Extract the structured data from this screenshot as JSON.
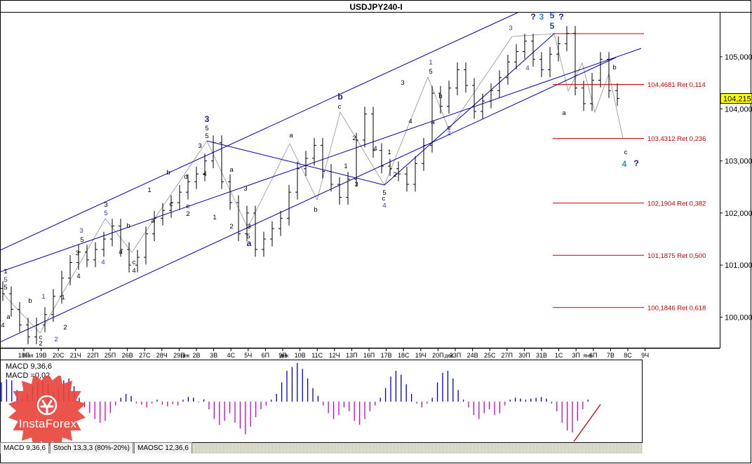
{
  "window": {
    "title": "USDJPY240-I"
  },
  "colors": {
    "price_bars": "#000000",
    "channel": "#0000aa",
    "fib_lines": "#cc0000",
    "zigzag": "#909090",
    "macd_pos": "#0000cc",
    "macd_neg": "#cc00cc",
    "signal": "#cc0000",
    "wave_black": "#000000",
    "wave_blue": "#1a3fbf",
    "wave_cyan": "#2a8ad4",
    "wave_navy": "#1a1a80",
    "logo": "#e8453c"
  },
  "chart_data": [
    {
      "type": "candlestick",
      "title": "USDJPY240-I",
      "ylim": [
        99.4,
        106.0
      ],
      "yticks": [
        "105,000",
        "104,000",
        "103,000",
        "102,000",
        "101,000",
        "100,000"
      ],
      "current_price": "104,215",
      "grid": false,
      "x_ticks": [
        "18П",
        "19В",
        "20С",
        "21Ч",
        "22П",
        "25П",
        "26В",
        "27С",
        "28Ч",
        "29П",
        "2В",
        "3В",
        "4С",
        "5Ч",
        "6П",
        "9П",
        "10В",
        "11С",
        "12Ч",
        "13П",
        "16П",
        "17В",
        "18С",
        "19Ч",
        "20П",
        "23П",
        "24В",
        "25С",
        "27П",
        "30П",
        "31В",
        "1С",
        "3П",
        "6П",
        "7В",
        "8С",
        "9Ч"
      ],
      "x_tick_inserts": [
        "Ноя",
        "дек",
        "дек",
        "дек",
        "янв"
      ],
      "close": [
        100.45,
        100.15,
        99.85,
        99.62,
        99.85,
        100.05,
        100.4,
        100.75,
        101.05,
        101.25,
        101.1,
        101.3,
        101.5,
        101.75,
        101.3,
        101.0,
        101.15,
        101.6,
        101.9,
        102.05,
        102.2,
        102.4,
        102.6,
        102.75,
        103.0,
        103.35,
        102.6,
        102.2,
        101.6,
        102.0,
        101.3,
        101.5,
        101.7,
        101.9,
        102.4,
        102.85,
        103.05,
        103.3,
        102.8,
        102.55,
        102.3,
        102.65,
        103.4,
        103.9,
        103.2,
        102.9,
        102.85,
        102.75,
        102.55,
        102.95,
        103.3,
        104.3,
        104.05,
        104.4,
        104.75,
        104.45,
        103.95,
        104.15,
        104.35,
        104.6,
        104.9,
        105.1,
        105.3,
        104.95,
        104.75,
        105.05,
        105.25,
        105.45,
        104.4,
        104.1,
        104.55,
        104.95,
        104.35,
        104.2
      ],
      "fib_levels": [
        {
          "price": 104.4681,
          "label": "104,4681 Ret 0,114"
        },
        {
          "price": 103.4312,
          "label": "103,4312 Ret 0,236"
        },
        {
          "price": 102.1904,
          "label": "102,1904 Ret 0,382"
        },
        {
          "price": 101.1875,
          "label": "101,1875 Ret 0,500"
        },
        {
          "price": 100.1846,
          "label": "100,1846 Ret 0,618"
        }
      ],
      "wave_labels": [
        {
          "text": "1",
          "color": "black"
        },
        {
          "text": "5",
          "color": "blue"
        },
        {
          "text": "5",
          "color": "black"
        },
        {
          "text": "4",
          "color": "black"
        },
        {
          "text": "a",
          "color": "black"
        },
        {
          "text": "b",
          "color": "black"
        },
        {
          "text": "1",
          "color": "blue"
        },
        {
          "text": "c",
          "color": "black"
        },
        {
          "text": "2",
          "color": "black"
        },
        {
          "text": "2",
          "color": "blue"
        },
        {
          "text": "1",
          "color": "black"
        },
        {
          "text": "2",
          "color": "black"
        },
        {
          "text": "4",
          "color": "black"
        },
        {
          "text": "3",
          "color": "black"
        },
        {
          "text": "3",
          "color": "blue"
        },
        {
          "text": "5",
          "color": "black"
        },
        {
          "text": "3",
          "color": "black"
        },
        {
          "text": "5",
          "color": "blue"
        },
        {
          "text": "4",
          "color": "blue"
        },
        {
          "text": "a",
          "color": "black"
        },
        {
          "text": "b",
          "color": "black"
        },
        {
          "text": "c",
          "color": "black"
        },
        {
          "text": "4",
          "color": "black"
        },
        {
          "text": "1",
          "color": "black"
        },
        {
          "text": "a",
          "color": "black"
        },
        {
          "text": "b",
          "color": "black"
        },
        {
          "text": "c",
          "color": "black"
        },
        {
          "text": "e",
          "color": "black"
        },
        {
          "text": "2",
          "color": "black"
        },
        {
          "text": "d",
          "color": "black"
        },
        {
          "text": "3",
          "color": "navy"
        },
        {
          "text": "5",
          "color": "black"
        },
        {
          "text": "5",
          "color": "black"
        },
        {
          "text": "3",
          "color": "black"
        },
        {
          "text": "4",
          "color": "black"
        },
        {
          "text": "1",
          "color": "black"
        },
        {
          "text": "a",
          "color": "black"
        },
        {
          "text": "2",
          "color": "black"
        },
        {
          "text": "3",
          "color": "black"
        },
        {
          "text": "3",
          "color": "black"
        },
        {
          "text": "5",
          "color": "black"
        },
        {
          "text": "a",
          "color": "navy"
        },
        {
          "text": "a",
          "color": "black"
        },
        {
          "text": "b",
          "color": "black"
        },
        {
          "text": "b",
          "color": "navy"
        },
        {
          "text": "c",
          "color": "black"
        },
        {
          "text": "2",
          "color": "black"
        },
        {
          "text": "1",
          "color": "black"
        },
        {
          "text": "3",
          "color": "black"
        },
        {
          "text": "4",
          "color": "black"
        },
        {
          "text": "5",
          "color": "black"
        },
        {
          "text": "c",
          "color": "black"
        },
        {
          "text": "4",
          "color": "blue"
        },
        {
          "text": "1",
          "color": "black"
        },
        {
          "text": "2",
          "color": "black"
        },
        {
          "text": "3",
          "color": "black"
        },
        {
          "text": "4",
          "color": "black"
        },
        {
          "text": "1",
          "color": "blue"
        },
        {
          "text": "5",
          "color": "black"
        },
        {
          "text": "b",
          "color": "black"
        },
        {
          "text": "a",
          "color": "black"
        },
        {
          "text": "c",
          "color": "black"
        },
        {
          "text": "2",
          "color": "blue"
        },
        {
          "text": "3",
          "color": "blue"
        },
        {
          "text": "4",
          "color": "blue"
        },
        {
          "text": "?",
          "color": "navy"
        },
        {
          "text": "3",
          "color": "cyan"
        },
        {
          "text": "5",
          "color": "blue"
        },
        {
          "text": "5",
          "color": "blue"
        },
        {
          "text": "?",
          "color": "navy"
        },
        {
          "text": "a",
          "color": "black"
        },
        {
          "text": "b",
          "color": "black"
        },
        {
          "text": "c",
          "color": "black"
        },
        {
          "text": "4",
          "color": "cyan"
        },
        {
          "text": "?",
          "color": "navy"
        }
      ]
    },
    {
      "type": "bar",
      "name": "MACD",
      "legend": [
        "MACD 9,36,6",
        "MACD =0,02"
      ],
      "values": [
        0.5,
        0.58,
        0.55,
        0.3,
        0.1,
        0.2,
        0.4,
        0.5,
        0.55,
        0.45,
        0.25,
        0.35,
        0.55,
        0.6,
        0.4,
        0.1,
        -0.15,
        -0.3,
        -0.45,
        -0.55,
        -0.5,
        -0.3,
        -0.1,
        0.1,
        0.2,
        0.15,
        -0.05,
        -0.08,
        -0.15,
        -0.05,
        0.05,
        -0.08,
        -0.12,
        -0.06,
        -0.1,
        0.05,
        0.12,
        0.1,
        -0.02,
        0.06,
        -0.2,
        -0.45,
        -0.6,
        -0.5,
        -0.3,
        -0.55,
        -0.7,
        -0.85,
        -0.65,
        -0.4,
        -0.2,
        -0.1,
        0.05,
        0.2,
        0.5,
        0.8,
        0.9,
        1.0,
        0.85,
        0.6,
        0.35,
        0.15,
        -0.1,
        -0.3,
        -0.45,
        -0.35,
        -0.15,
        -0.25,
        -0.5,
        -0.6,
        -0.45,
        -0.25,
        -0.1,
        0.1,
        0.35,
        0.65,
        0.8,
        0.7,
        0.45,
        0.2,
        -0.05,
        -0.15,
        -0.05,
        0.1,
        0.5,
        0.75,
        0.8,
        0.6,
        0.3,
        0.05,
        -0.15,
        -0.35,
        -0.45,
        -0.3,
        -0.2,
        -0.35,
        -0.3,
        -0.1,
        0.05,
        0.1,
        0.08,
        0.05,
        0.08,
        0.1,
        0.12,
        0.08,
        -0.05,
        -0.25,
        -0.55,
        -0.75,
        -0.8,
        -0.5,
        -0.2,
        0.05
      ]
    }
  ],
  "indicator_tabs": [
    "MACD 9,36,6",
    "Stoch 13,3,3 (80%-20%)",
    "MAOSC 12,36,6"
  ],
  "logo": {
    "text": "InstaForex"
  }
}
